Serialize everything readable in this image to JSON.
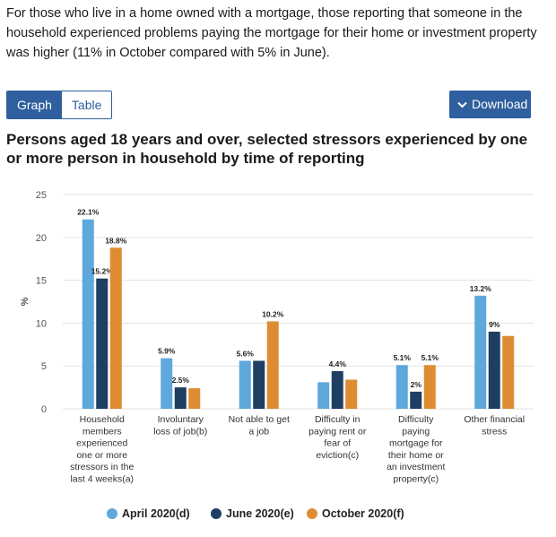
{
  "intro_text": "For those who live in a home owned with a mortgage, those reporting that someone in the household experienced problems paying the mortgage for their home or investment property was higher (11% in October compared with 5% in June).",
  "tabs": {
    "graph": "Graph",
    "table": "Table"
  },
  "download_label": "Download",
  "chart_data": {
    "type": "bar",
    "title": "Persons aged 18 years and over, selected stressors experienced by one or more person in household by time of reporting",
    "ylabel": "%",
    "ylim": [
      0,
      25
    ],
    "yticks": [
      "0",
      "5",
      "10",
      "15",
      "20",
      "25"
    ],
    "grid": true,
    "legend_position": "bottom",
    "categories": [
      [
        "Household",
        "members",
        "experienced",
        "one or more",
        "stressors in the",
        "last 4 weeks(a)"
      ],
      [
        "Involuntary",
        "loss of job(b)"
      ],
      [
        "Not able to get",
        "a job"
      ],
      [
        "Difficulty in",
        "paying rent or",
        "fear of",
        "eviction(c)"
      ],
      [
        "Difficulty",
        "paying",
        "mortgage for",
        "their home or",
        "an investment",
        "property(c)"
      ],
      [
        "Other financial",
        "stress"
      ]
    ],
    "series": [
      {
        "name": "April 2020(d)",
        "color": "#5ea8dc",
        "values": [
          22.1,
          5.9,
          5.6,
          3.1,
          5.1,
          13.2
        ],
        "labels": [
          "22.1%",
          "5.9%",
          "5.6%",
          "",
          "5.1%",
          "13.2%"
        ]
      },
      {
        "name": "June 2020(e)",
        "color": "#1f3e63",
        "values": [
          15.2,
          2.5,
          5.6,
          4.4,
          2,
          9
        ],
        "labels": [
          "15.2%",
          "2.5%",
          "",
          "4.4%",
          "2%",
          "9%"
        ]
      },
      {
        "name": "October 2020(f)",
        "color": "#de8c32",
        "values": [
          18.8,
          2.4,
          10.2,
          3.4,
          5.1,
          8.5
        ],
        "labels": [
          "18.8%",
          "",
          "10.2%",
          "",
          "5.1%",
          ""
        ]
      }
    ]
  }
}
